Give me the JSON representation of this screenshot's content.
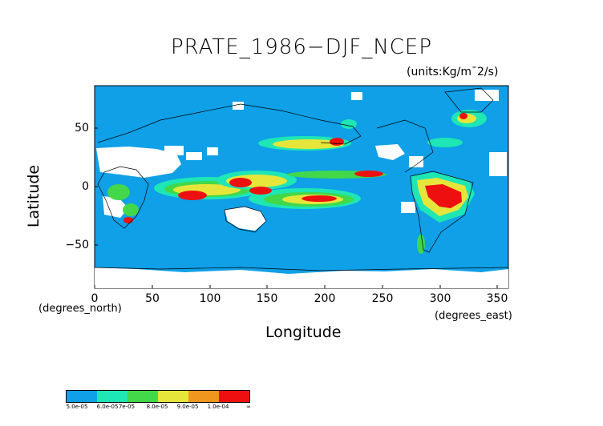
{
  "title": "PRATE_1986−DJF_NCEP",
  "units": "(units:Kg/m¯2/s)",
  "axes": {
    "xlabel": "Longitude",
    "ylabel": "Latitude",
    "x_note": "(degrees_north)",
    "y_note": "(degrees_east)",
    "x_ticks": [
      "0",
      "50",
      "100",
      "150",
      "200",
      "250",
      "300",
      "350"
    ],
    "y_ticks": [
      "50",
      "0",
      "−50"
    ],
    "x_range": [
      0,
      360
    ],
    "y_range": [
      -90,
      90
    ]
  },
  "legend": {
    "labels": [
      "5.0e-05",
      "6.0e-05",
      "7e-05",
      "8.0e-05",
      "9.0e-05",
      "1.0e-04",
      "∞"
    ],
    "colors": [
      "#0fa0e8",
      "#1ee6b4",
      "#42d84a",
      "#e6e63a",
      "#f0961e",
      "#ee1010"
    ]
  },
  "colors": {
    "ocean_low": "#0fa0e8",
    "no_data": "#ffffff"
  }
}
